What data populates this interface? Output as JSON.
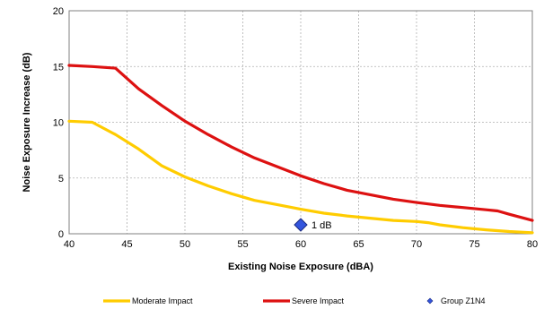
{
  "chart_data": {
    "type": "line",
    "xlabel": "Existing Noise Exposure (dBA)",
    "ylabel": "Noise Exposure Increase (dB)",
    "xlim": [
      40,
      80
    ],
    "ylim": [
      0,
      20
    ],
    "xticks": [
      40,
      45,
      50,
      55,
      60,
      65,
      70,
      75,
      80
    ],
    "yticks": [
      0,
      5,
      10,
      15,
      20
    ],
    "grid": true,
    "legend_position": "bottom",
    "series": [
      {
        "name": "Moderate Impact",
        "color": "#FFCC00",
        "x": [
          40,
          42,
          44,
          46,
          48,
          50,
          52,
          54,
          56,
          58,
          60,
          62,
          64,
          66,
          68,
          70,
          71,
          72,
          74,
          76,
          78,
          80
        ],
        "y": [
          10.1,
          10.0,
          8.9,
          7.6,
          6.1,
          5.1,
          4.3,
          3.6,
          3.0,
          2.6,
          2.2,
          1.85,
          1.6,
          1.4,
          1.2,
          1.1,
          1.0,
          0.8,
          0.55,
          0.35,
          0.2,
          0.1
        ]
      },
      {
        "name": "Severe Impact",
        "color": "#DD1111",
        "x": [
          40,
          42,
          44,
          46,
          48,
          50,
          52,
          54,
          56,
          58,
          60,
          62,
          64,
          66,
          68,
          70,
          72,
          74,
          76,
          77,
          78,
          80
        ],
        "y": [
          15.1,
          15.0,
          14.85,
          13.0,
          11.5,
          10.1,
          8.9,
          7.8,
          6.8,
          6.0,
          5.2,
          4.5,
          3.9,
          3.5,
          3.1,
          2.8,
          2.55,
          2.35,
          2.15,
          2.05,
          1.75,
          1.2
        ]
      },
      {
        "name": "Group Z1N4",
        "color": "#3355DD",
        "marker": "diamond",
        "x": [
          60
        ],
        "y": [
          0.8
        ],
        "labels": [
          "1 dB"
        ]
      }
    ]
  }
}
